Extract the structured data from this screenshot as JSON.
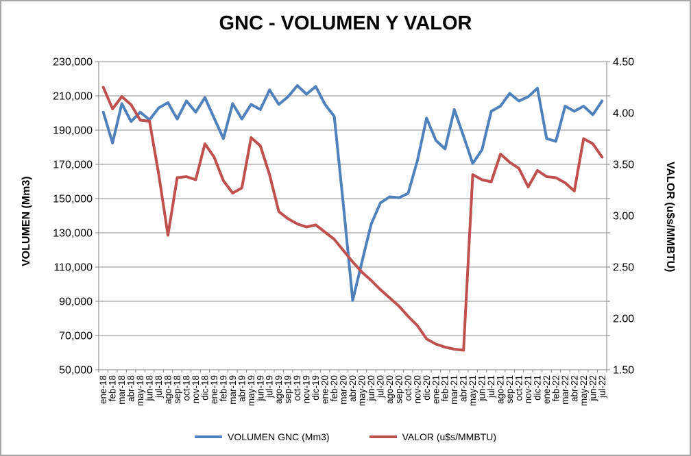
{
  "window": {
    "background": "#ffffff",
    "border_color": "#a6a6a6"
  },
  "chart_data": {
    "type": "line",
    "title": "GNC - VOLUMEN Y VALOR",
    "grid": true,
    "legend_position": "bottom",
    "x_categories": [
      "ene-18",
      "feb-18",
      "mar-18",
      "abr-18",
      "may-18",
      "jun-18",
      "jul-18",
      "ago-18",
      "sep-18",
      "oct-18",
      "nov-18",
      "dic-18",
      "ene-19",
      "feb-19",
      "mar-19",
      "abr-19",
      "may-19",
      "jun-19",
      "jul-19",
      "ago-19",
      "sep-19",
      "oct-19",
      "nov-19",
      "dic-19",
      "ene-20",
      "feb-20",
      "mar-20",
      "abr-20",
      "may-20",
      "jun-20",
      "jul-20",
      "ago-20",
      "sep-20",
      "oct-20",
      "nov-20",
      "dic-20",
      "ene-21",
      "feb-21",
      "mar-21",
      "abr-21",
      "may-21",
      "jun-21",
      "jul-21",
      "ago-21",
      "sep-21",
      "oct-21",
      "nov-21",
      "dic-21",
      "ene-22",
      "feb-22",
      "mar-22",
      "abr-22",
      "may-22",
      "jun-22",
      "jul-22"
    ],
    "y_left": {
      "label": "VOLUMEN (Mm3)",
      "min": 50000,
      "max": 230000,
      "step": 20000,
      "tick_labels": [
        "230,000",
        "210,000",
        "190,000",
        "170,000",
        "150,000",
        "130,000",
        "110,000",
        "90,000",
        "70,000",
        "50,000"
      ]
    },
    "y_right": {
      "label": "VALOR (u$s/MMBTU)",
      "min": 1.5,
      "max": 4.5,
      "step": 0.5,
      "tick_labels": [
        "4.50",
        "4.00",
        "3.50",
        "3.00",
        "2.50",
        "2.00",
        "1.50"
      ]
    },
    "series": [
      {
        "name": "VOLUMEN GNC (Mm3)",
        "axis": "left",
        "color": "#4F81BD",
        "values": [
          200500,
          182500,
          205500,
          195000,
          200500,
          196000,
          203000,
          206000,
          196500,
          207000,
          200500,
          209000,
          197000,
          185000,
          205500,
          196500,
          205000,
          202000,
          213500,
          205000,
          209500,
          216000,
          211000,
          215500,
          205000,
          198000,
          146000,
          90500,
          113000,
          135000,
          147500,
          151000,
          150500,
          153000,
          172000,
          197000,
          184000,
          179000,
          202000,
          186500,
          170500,
          178500,
          201000,
          204000,
          211500,
          207000,
          209500,
          214500,
          185000,
          183500,
          204000,
          201000,
          204000,
          199000,
          207000
        ]
      },
      {
        "name": "VALOR (u$s/MMBTU)",
        "axis": "right",
        "color": "#C0504D",
        "values": [
          4.25,
          4.04,
          4.16,
          4.08,
          3.93,
          3.92,
          3.4,
          2.81,
          3.37,
          3.38,
          3.35,
          3.7,
          3.57,
          3.34,
          3.22,
          3.27,
          3.76,
          3.68,
          3.4,
          3.04,
          2.97,
          2.92,
          2.89,
          2.91,
          2.84,
          2.77,
          2.66,
          2.55,
          2.45,
          2.37,
          2.28,
          2.2,
          2.12,
          2.02,
          1.93,
          1.8,
          1.75,
          1.72,
          1.7,
          1.69,
          3.4,
          3.35,
          3.33,
          3.6,
          3.52,
          3.46,
          3.28,
          3.44,
          3.38,
          3.37,
          3.32,
          3.24,
          3.75,
          3.7,
          3.57
        ]
      }
    ],
    "colors": {
      "gridline": "#8C8C8C",
      "axis_line": "#7F7F7F",
      "tick_text": "#000000"
    }
  }
}
